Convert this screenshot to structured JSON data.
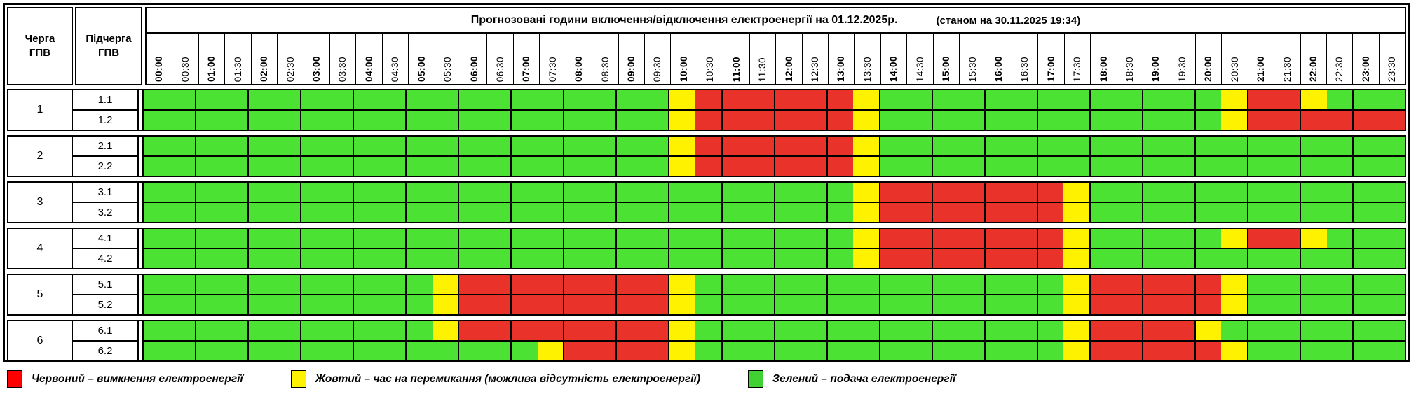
{
  "header": {
    "queue_col": "Черга\nГПВ",
    "subqueue_col": "Підчерга\nГПВ",
    "title_main": "Прогнозовані години включення/відключення електроенергії на 01.12.2025р.",
    "title_note": "(станом на 30.11.2025 19:34)"
  },
  "cell_colors": {
    "G": "#4be234",
    "Y": "#fff200",
    "R": "#e93229"
  },
  "legend": [
    {
      "key": "red",
      "swatch": "#ff0000",
      "label": "Червоний – вимкнення електроенергії"
    },
    {
      "key": "yellow",
      "swatch": "#fff200",
      "label": "Жовтий – час на перемикання (можлива відсутність електроенергії)"
    },
    {
      "key": "green",
      "swatch": "#3fd232",
      "label": "Зелений – подача електроенергії"
    }
  ],
  "chart_data": {
    "type": "heatmap",
    "title": "Прогнозовані години включення/відключення електроенергії на 01.12.2025р.",
    "as_of": "(станом на 30.11.2025 19:34)",
    "x_labels": [
      "00:00",
      "00:30",
      "01:00",
      "01:30",
      "02:00",
      "02:30",
      "03:00",
      "03:30",
      "04:00",
      "04:30",
      "05:00",
      "05:30",
      "06:00",
      "06:30",
      "07:00",
      "07:30",
      "08:00",
      "08:30",
      "09:00",
      "09:30",
      "10:00",
      "10:30",
      "11:00",
      "11:30",
      "12:00",
      "12:30",
      "13:00",
      "13:30",
      "14:00",
      "14:30",
      "15:00",
      "15:30",
      "16:00",
      "16:30",
      "17:00",
      "17:30",
      "18:00",
      "18:30",
      "19:00",
      "19:30",
      "20:00",
      "20:30",
      "21:00",
      "21:30",
      "22:00",
      "22:30",
      "23:00",
      "23:30"
    ],
    "groups": [
      {
        "queue": "1",
        "rows": [
          "1.1",
          "1.2"
        ]
      },
      {
        "queue": "2",
        "rows": [
          "2.1",
          "2.2"
        ]
      },
      {
        "queue": "3",
        "rows": [
          "3.1",
          "3.2"
        ]
      },
      {
        "queue": "4",
        "rows": [
          "4.1",
          "4.2"
        ]
      },
      {
        "queue": "5",
        "rows": [
          "5.1",
          "5.2"
        ]
      },
      {
        "queue": "6",
        "rows": [
          "6.1",
          "6.2"
        ]
      }
    ],
    "cells": {
      "1.1": "GGGGGGGGGGGGGGGGGGGGYRRRRRRYGGGGGGGGGGGGGYRRYGGG",
      "1.2": "GGGGGGGGGGGGGGGGGGGGYRRRRRRYGGGGGGGGGGGGGYRRRRRR",
      "2.1": "GGGGGGGGGGGGGGGGGGGGYRRRRRRYGGGGGGGGGGGGGGGGGGGG",
      "2.2": "GGGGGGGGGGGGGGGGGGGGYRRRRRRYGGGGGGGGGGGGGGGGGGGG",
      "3.1": "GGGGGGGGGGGGGGGGGGGGGGGGGGGYRRRRRRRYGGGGGGGGGGGG",
      "3.2": "GGGGGGGGGGGGGGGGGGGGGGGGGGGYRRRRRRRYGGGGGGGGGGGG",
      "4.1": "GGGGGGGGGGGGGGGGGGGGGGGGGGGYRRRRRRRYGGGGGYRRYGGG",
      "4.2": "GGGGGGGGGGGGGGGGGGGGGGGGGGGYRRRRRRRYGGGGGGGGGGGG",
      "5.1": "GGGGGGGGGGGYRRRRRRRRYGGGGGGGGGGGGGGYRRRRRYGGGGGG",
      "5.2": "GGGGGGGGGGGYRRRRRRRRYGGGGGGGGGGGGGGYRRRRRYGGGGGG",
      "6.1": "GGGGGGGGGGGYRRRRRRRRYGGGGGGGGGGGGGGYRRRRYGGGGGGG",
      "6.2": "GGGGGGGGGGGGGGGYRRRRYGGGGGGGGGGGGGGYRRRRRYGGGGGG"
    },
    "encoding": {
      "G": "Зелений – подача електроенергії",
      "Y": "Жовтий – час на перемикання (можлива відсутність електроенергії)",
      "R": "Червоний – вимкнення електроенергії"
    }
  }
}
